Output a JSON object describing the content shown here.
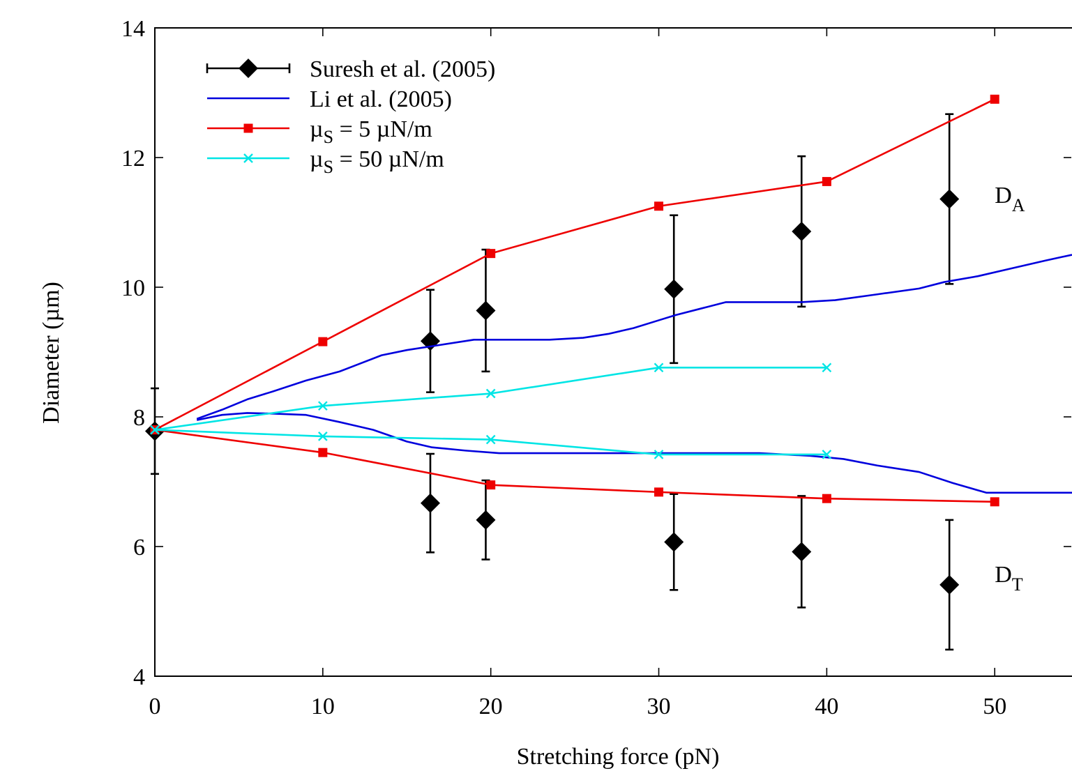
{
  "chart_data": {
    "type": "line",
    "xlabel": "Stretching force (pN)",
    "ylabel": "Diameter (µm)",
    "xlim": [
      0,
      54.6
    ],
    "ylim": [
      4,
      14
    ],
    "xticks": [
      0,
      10,
      20,
      30,
      40,
      50
    ],
    "xtick_labels": [
      "0",
      "10",
      "20",
      "30",
      "40",
      "50"
    ],
    "yticks": [
      4,
      6,
      8,
      10,
      12,
      14
    ],
    "ytick_labels": [
      "4",
      "6",
      "8",
      "10",
      "12",
      "14"
    ],
    "grid": false,
    "legend_position": "top-left",
    "annotations": [
      {
        "main": "D",
        "sub": "A",
        "x": 50,
        "y": 11.3
      },
      {
        "main": "D",
        "sub": "T",
        "x": 50,
        "y": 5.45
      }
    ],
    "series": [
      {
        "key": "suresh",
        "legend": {
          "main": "Suresh et al. (2005)",
          "sub": "",
          "tail": ""
        },
        "style": "errorbar",
        "color": "#000000",
        "marker": "diamond",
        "branches": [
          {
            "x": [
              0,
              16.4,
              19.7,
              30.9,
              38.5,
              47.3
            ],
            "y": [
              7.78,
              9.17,
              9.64,
              9.97,
              10.86,
              11.36
            ],
            "err": [
              0.66,
              0.79,
              0.94,
              1.14,
              1.16,
              1.31
            ]
          },
          {
            "x": [
              16.4,
              19.7,
              30.9,
              38.5,
              47.3
            ],
            "y": [
              6.67,
              6.41,
              6.07,
              5.92,
              5.41
            ],
            "err": [
              0.76,
              0.61,
              0.74,
              0.86,
              1.0
            ]
          }
        ]
      },
      {
        "key": "li",
        "legend": {
          "main": "Li et al. (2005)",
          "sub": "",
          "tail": ""
        },
        "style": "line",
        "color": "#0000dd",
        "marker": "none",
        "branches": [
          {
            "x": [
              2.5,
              4,
              5.5,
              7,
              9,
              11,
              13.5,
              15,
              17,
              19,
              21,
              23.5,
              25.5,
              27,
              28.5,
              30,
              31,
              32.5,
              34,
              36,
              38.5,
              40.5,
              43,
              45.5,
              47,
              49,
              51,
              53,
              54.6
            ],
            "y": [
              7.97,
              8.11,
              8.27,
              8.39,
              8.56,
              8.7,
              8.95,
              9.03,
              9.11,
              9.19,
              9.19,
              9.19,
              9.22,
              9.28,
              9.37,
              9.49,
              9.57,
              9.67,
              9.77,
              9.77,
              9.77,
              9.8,
              9.89,
              9.98,
              10.08,
              10.17,
              10.29,
              10.41,
              10.5
            ]
          },
          {
            "x": [
              2.5,
              4,
              5.5,
              7,
              9,
              11,
              13,
              15,
              16.5,
              18.5,
              20.5,
              23,
              25,
              27,
              30,
              33,
              36,
              39,
              41,
              43,
              45.5,
              47.5,
              49.5,
              51.5,
              54.6
            ],
            "y": [
              7.95,
              8.03,
              8.06,
              8.05,
              8.03,
              7.92,
              7.8,
              7.62,
              7.53,
              7.48,
              7.44,
              7.44,
              7.44,
              7.44,
              7.44,
              7.44,
              7.44,
              7.4,
              7.35,
              7.25,
              7.15,
              6.98,
              6.83,
              6.83,
              6.83
            ]
          }
        ]
      },
      {
        "key": "mu5",
        "legend": {
          "main": "µ",
          "sub": "S",
          "tail": " = 5 µN/m"
        },
        "style": "line",
        "color": "#ee0000",
        "marker": "square",
        "branches": [
          {
            "x": [
              0,
              10,
              20,
              30,
              40,
              50
            ],
            "y": [
              7.8,
              9.16,
              10.52,
              11.25,
              11.63,
              12.9
            ]
          },
          {
            "x": [
              0,
              10,
              20,
              30,
              40,
              50
            ],
            "y": [
              7.8,
              7.45,
              6.95,
              6.84,
              6.74,
              6.69
            ]
          }
        ]
      },
      {
        "key": "mu50",
        "legend": {
          "main": "µ",
          "sub": "S",
          "tail": " = 50 µN/m"
        },
        "style": "line",
        "color": "#00e5e5",
        "marker": "cross",
        "branches": [
          {
            "x": [
              0,
              10,
              20,
              30,
              40
            ],
            "y": [
              7.8,
              8.17,
              8.36,
              8.76,
              8.76
            ]
          },
          {
            "x": [
              0,
              10,
              20,
              30,
              40
            ],
            "y": [
              7.8,
              7.7,
              7.65,
              7.42,
              7.42
            ]
          }
        ]
      }
    ]
  }
}
